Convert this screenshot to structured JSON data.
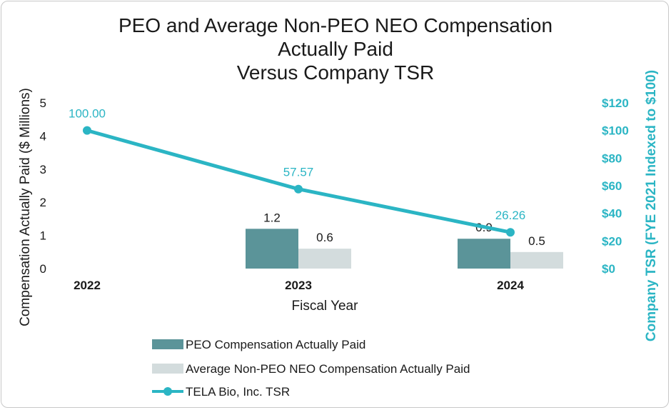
{
  "chart_data": {
    "type": "bar",
    "title_lines": [
      "PEO and Average Non-PEO NEO Compensation",
      "Actually Paid",
      "Versus Company TSR"
    ],
    "xlabel": "Fiscal Year",
    "ylabel": "Compensation Actually Paid ($ Millions)",
    "y2label": "Company TSR (FYE 2021 Indexed to $100)",
    "categories": [
      "2022",
      "2023",
      "2024"
    ],
    "ylim": [
      0,
      5
    ],
    "y_ticks": [
      "0",
      "1",
      "2",
      "3",
      "4",
      "5"
    ],
    "y2lim": [
      0,
      120
    ],
    "y2_ticks": [
      "$0",
      "$20",
      "$40",
      "$60",
      "$80",
      "$100",
      "$120"
    ],
    "series": [
      {
        "name": "PEO Compensation Actually Paid",
        "kind": "bar",
        "axis": "left",
        "color": "#5b9499",
        "values": [
          null,
          1.2,
          0.9
        ],
        "labels": [
          "",
          "1.2",
          "0.9"
        ]
      },
      {
        "name": "Average Non-PEO NEO Compensation Actually Paid",
        "kind": "bar",
        "axis": "left",
        "color": "#d3dcdd",
        "values": [
          null,
          0.6,
          0.5
        ],
        "labels": [
          "",
          "0.6",
          "0.5"
        ]
      },
      {
        "name": "TELA Bio, Inc. TSR",
        "kind": "line",
        "axis": "right",
        "color": "#2bb5c4",
        "values": [
          100.0,
          57.57,
          26.26
        ],
        "labels": [
          "100.00",
          "57.57",
          "26.26"
        ]
      }
    ],
    "grid": false,
    "legend_position": "bottom"
  }
}
